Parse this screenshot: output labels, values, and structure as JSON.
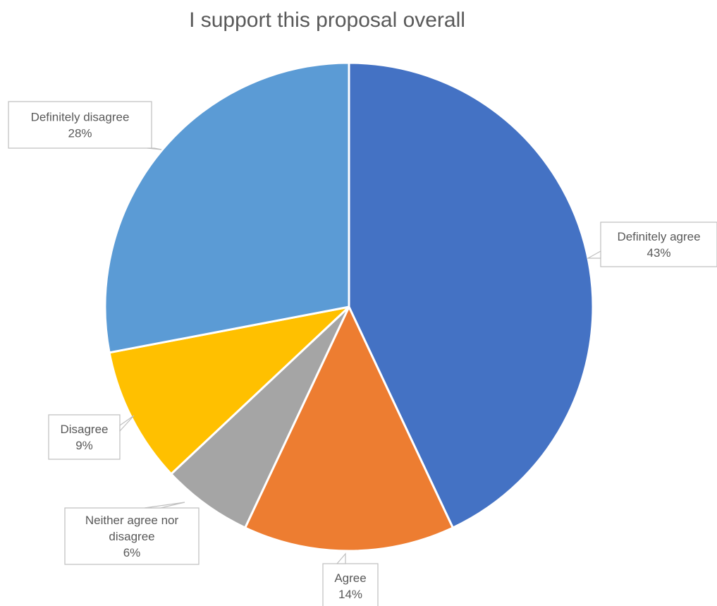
{
  "chart_data": {
    "type": "pie",
    "title": "I support this proposal overall",
    "slices": [
      {
        "label": "Definitely agree",
        "value": 43,
        "value_label": "43%",
        "color": "#4472C4"
      },
      {
        "label": "Agree",
        "value": 14,
        "value_label": "14%",
        "color": "#ED7D31"
      },
      {
        "label": "Neither agree nor disagree",
        "label_lines": [
          "Neither agree nor",
          "disagree"
        ],
        "value": 6,
        "value_label": "6%",
        "color": "#A5A5A5"
      },
      {
        "label": "Disagree",
        "value": 9,
        "value_label": "9%",
        "color": "#FFC000"
      },
      {
        "label": "Definitely disagree",
        "value": 28,
        "value_label": "28%",
        "color": "#5B9BD5"
      }
    ]
  }
}
